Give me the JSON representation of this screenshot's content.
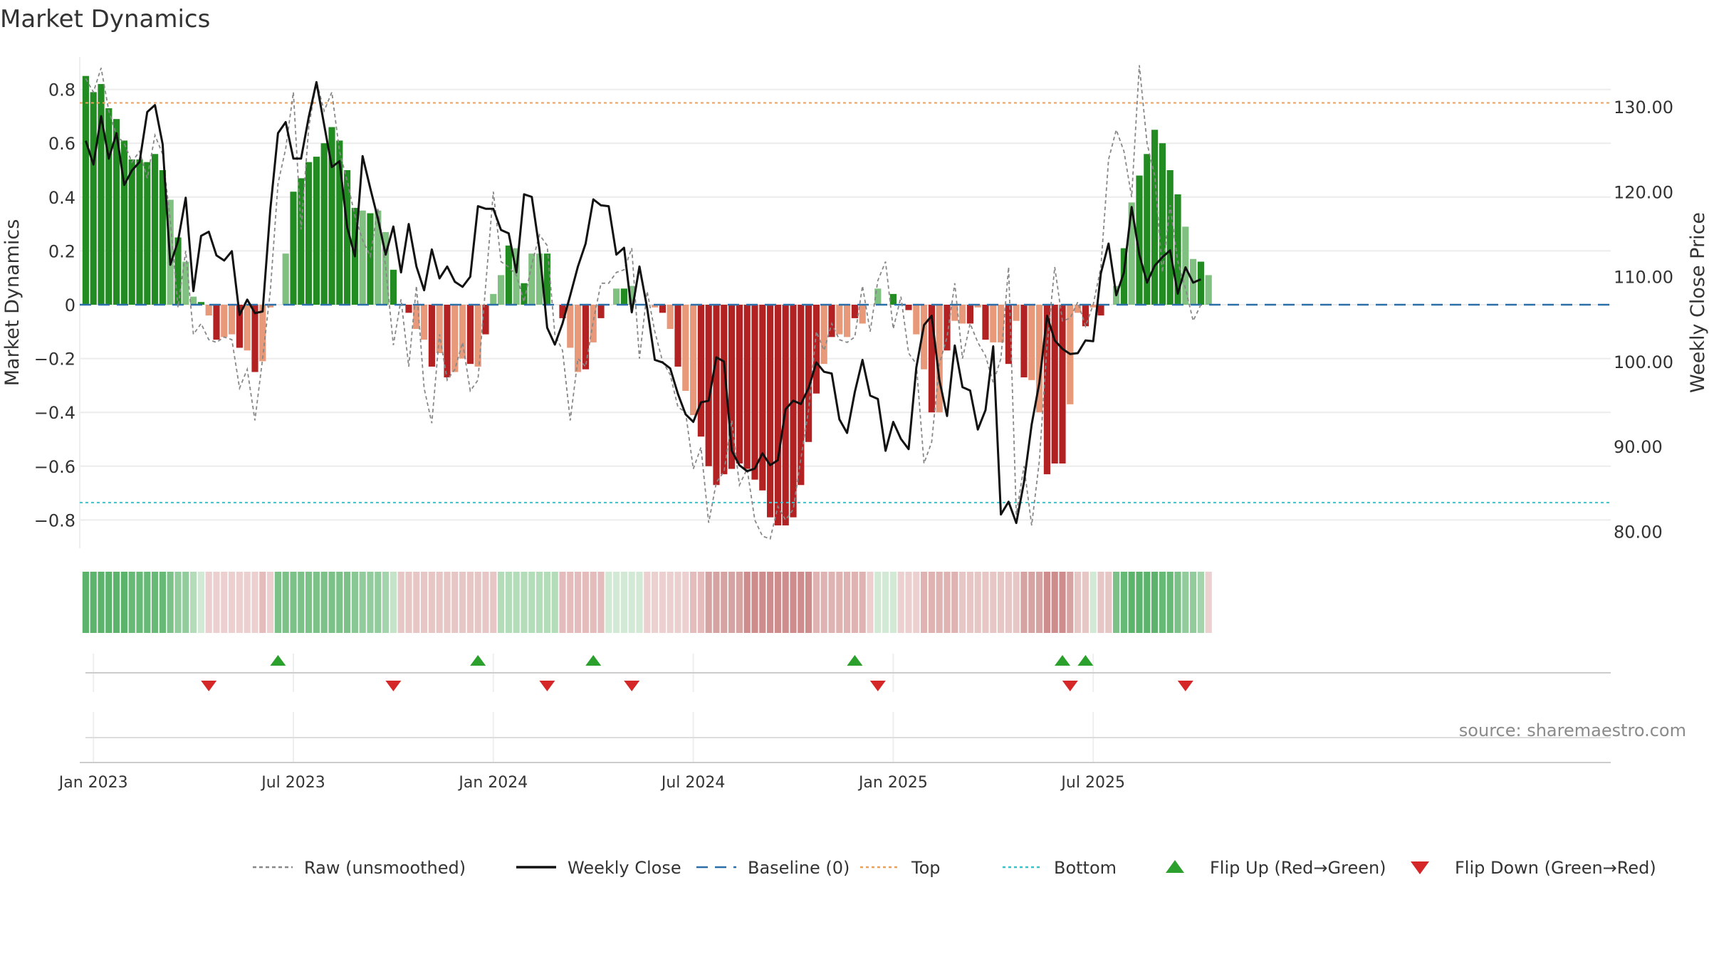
{
  "chart_data": {
    "type": "bar",
    "title": "Market Dynamics",
    "ylabel_left": "Market Dynamics",
    "ylabel_right": "Weekly Close Price",
    "source": "source: sharemaestro.com",
    "ylim_left": [
      -0.92,
      0.92
    ],
    "ylim_right": [
      78.0,
      133.5
    ],
    "y_ticks_left": [
      {
        "v": 0.8,
        "label": "0.8"
      },
      {
        "v": 0.6,
        "label": "0.6"
      },
      {
        "v": 0.4,
        "label": "0.4"
      },
      {
        "v": 0.2,
        "label": "0.2"
      },
      {
        "v": 0.0,
        "label": "0"
      },
      {
        "v": -0.2,
        "label": "−0.2"
      },
      {
        "v": -0.4,
        "label": "−0.4"
      },
      {
        "v": -0.6,
        "label": "−0.6"
      },
      {
        "v": -0.8,
        "label": "−0.8"
      }
    ],
    "y_ticks_right": [
      {
        "v": 130,
        "label": "130.00"
      },
      {
        "v": 120,
        "label": "120.00"
      },
      {
        "v": 110,
        "label": "110.00"
      },
      {
        "v": 100,
        "label": "100.00"
      },
      {
        "v": 90,
        "label": "90.00"
      },
      {
        "v": 80,
        "label": "80.00"
      }
    ],
    "x_ticks": [
      {
        "week": 1.5,
        "label": "Jan 2023"
      },
      {
        "week": 27.5,
        "label": "Jul 2023"
      },
      {
        "week": 53.5,
        "label": "Jan 2024"
      },
      {
        "week": 79.5,
        "label": "Jul 2024"
      },
      {
        "week": 105.5,
        "label": "Jan 2025"
      },
      {
        "week": 131.5,
        "label": "Jul 2025"
      }
    ],
    "levels": {
      "top": 0.75,
      "bottom": -0.735,
      "baseline": 0
    },
    "dynamics": [
      0.85,
      0.79,
      0.82,
      0.73,
      0.69,
      0.61,
      0.54,
      0.54,
      0.53,
      0.56,
      0.5,
      0.39,
      0.25,
      0.16,
      0.03,
      0.01,
      -0.04,
      -0.13,
      -0.12,
      -0.11,
      -0.16,
      -0.17,
      -0.25,
      -0.21,
      -0.01,
      0.0,
      0.19,
      0.42,
      0.47,
      0.53,
      0.55,
      0.6,
      0.66,
      0.61,
      0.5,
      0.36,
      0.35,
      0.34,
      0.35,
      0.27,
      0.13,
      0.0,
      -0.03,
      -0.09,
      -0.13,
      -0.23,
      -0.18,
      -0.27,
      -0.25,
      -0.2,
      -0.22,
      -0.23,
      -0.11,
      0.04,
      0.11,
      0.22,
      0.21,
      0.08,
      0.19,
      0.19,
      0.19,
      0.0,
      -0.05,
      -0.16,
      -0.25,
      -0.24,
      -0.14,
      -0.05,
      0.0,
      0.06,
      0.06,
      0.07,
      0.0,
      0.0,
      -0.01,
      -0.03,
      -0.09,
      -0.23,
      -0.32,
      -0.41,
      -0.49,
      -0.6,
      -0.67,
      -0.63,
      -0.61,
      -0.59,
      -0.61,
      -0.65,
      -0.69,
      -0.79,
      -0.82,
      -0.82,
      -0.79,
      -0.67,
      -0.51,
      -0.33,
      -0.22,
      -0.12,
      -0.11,
      -0.12,
      -0.05,
      -0.07,
      0.0,
      0.06,
      0.0,
      0.04,
      0.0,
      -0.02,
      -0.11,
      -0.24,
      -0.4,
      -0.4,
      -0.17,
      -0.06,
      -0.07,
      -0.07,
      -0.01,
      -0.13,
      -0.14,
      -0.14,
      -0.22,
      -0.06,
      -0.27,
      -0.28,
      -0.4,
      -0.63,
      -0.59,
      -0.59,
      -0.37,
      -0.03,
      -0.08,
      -0.01,
      -0.04,
      0.0,
      0.07,
      0.21,
      0.38,
      0.48,
      0.56,
      0.65,
      0.6,
      0.5,
      0.41,
      0.29,
      0.17,
      0.16,
      0.11
    ],
    "raw": [
      0.84,
      0.79,
      0.88,
      0.72,
      0.63,
      0.6,
      0.53,
      0.57,
      0.47,
      0.63,
      0.56,
      0.31,
      -0.01,
      0.2,
      -0.11,
      -0.07,
      -0.13,
      -0.14,
      -0.12,
      -0.13,
      -0.31,
      -0.24,
      -0.43,
      -0.2,
      0.05,
      0.45,
      0.58,
      0.79,
      0.28,
      0.66,
      0.83,
      0.72,
      0.79,
      0.57,
      0.46,
      0.33,
      0.24,
      0.18,
      0.36,
      0.14,
      -0.15,
      0.02,
      -0.23,
      0.07,
      -0.31,
      -0.44,
      -0.11,
      -0.28,
      -0.24,
      -0.14,
      -0.32,
      -0.28,
      0.07,
      0.42,
      0.16,
      0.14,
      0.11,
      0.01,
      0.15,
      0.26,
      0.22,
      -0.11,
      -0.17,
      -0.43,
      -0.2,
      -0.23,
      -0.06,
      0.08,
      0.08,
      0.12,
      0.13,
      0.21,
      -0.2,
      0.05,
      -0.1,
      -0.21,
      -0.26,
      -0.38,
      -0.4,
      -0.61,
      -0.53,
      -0.81,
      -0.66,
      -0.62,
      -0.43,
      -0.67,
      -0.61,
      -0.8,
      -0.86,
      -0.87,
      -0.75,
      -0.8,
      -0.76,
      -0.57,
      -0.39,
      -0.1,
      -0.17,
      -0.07,
      -0.13,
      -0.14,
      -0.12,
      0.07,
      -0.1,
      0.09,
      0.16,
      -0.09,
      0.03,
      -0.18,
      -0.22,
      -0.59,
      -0.51,
      -0.22,
      -0.12,
      0.08,
      -0.2,
      -0.07,
      -0.14,
      -0.19,
      -0.29,
      -0.2,
      0.14,
      -0.78,
      -0.6,
      -0.82,
      -0.58,
      -0.15,
      0.14,
      -0.06,
      -0.05,
      0.01,
      -0.08,
      0.0,
      0.14,
      0.54,
      0.65,
      0.57,
      0.4,
      0.89,
      0.6,
      0.48,
      0.12,
      0.37,
      0.16,
      0.06,
      -0.06,
      0.0
    ],
    "weekly_close": [
      126.0,
      123.2,
      128.9,
      123.9,
      126.9,
      120.8,
      122.5,
      123.5,
      129.4,
      130.2,
      125.6,
      111.4,
      114.2,
      119.3,
      108.3,
      114.8,
      115.3,
      112.5,
      111.9,
      113.0,
      105.5,
      107.3,
      105.7,
      105.9,
      117.9,
      126.9,
      128.2,
      123.9,
      123.9,
      128.8,
      132.9,
      127.9,
      122.9,
      123.6,
      115.8,
      112.4,
      124.2,
      120.4,
      116.8,
      112.6,
      115.9,
      110.5,
      116.2,
      111.2,
      108.4,
      113.2,
      109.8,
      111.2,
      109.4,
      108.8,
      110.0,
      118.3,
      118.0,
      118.0,
      115.5,
      115.1,
      110.5,
      119.7,
      119.4,
      113.2,
      104.0,
      102.0,
      104.5,
      107.8,
      111.2,
      113.9,
      119.1,
      118.4,
      118.3,
      112.6,
      113.4,
      105.8,
      111.2,
      106.3,
      100.2,
      99.9,
      99.2,
      96.2,
      93.8,
      92.9,
      95.2,
      95.4,
      100.5,
      100.0,
      89.5,
      87.8,
      87.1,
      87.4,
      89.2,
      87.8,
      88.4,
      94.4,
      95.4,
      95.0,
      96.9,
      99.9,
      98.8,
      98.6,
      93.2,
      91.6,
      96.4,
      100.2,
      96.0,
      95.6,
      89.5,
      92.9,
      90.9,
      89.7,
      99.3,
      104.3,
      105.4,
      97.8,
      93.6,
      101.9,
      97.0,
      96.6,
      92.0,
      94.3,
      101.8,
      82.0,
      83.5,
      81.0,
      85.8,
      92.6,
      97.5,
      105.4,
      102.5,
      101.5,
      100.9,
      101.0,
      102.5,
      102.4,
      110.4,
      113.9,
      107.8,
      110.5,
      118.2,
      112.6,
      109.3,
      111.3,
      112.3,
      113.1,
      108.0,
      111.1,
      109.3,
      109.7
    ],
    "flip_up_weeks": [
      25.5,
      51.5,
      66.5,
      100.5,
      127.5,
      130.5
    ],
    "flip_down_weeks": [
      16.5,
      40.5,
      60.5,
      71.5,
      103.5,
      128.5,
      143.5
    ],
    "strip_colors": [
      "#5cb46c",
      "#5cb46c",
      "#5cb46c",
      "#5cb46c",
      "#5cb46c",
      "#5cb46c",
      "#67b976",
      "#67b976",
      "#67b976",
      "#67b976",
      "#67b976",
      "#7cc288",
      "#93cc9c",
      "#93cc9c",
      "#b3dcb9",
      "#d2e9d5",
      "#ecd0d0",
      "#ecd0d0",
      "#ecd0d0",
      "#ecd0d0",
      "#ecd0d0",
      "#ecd0d0",
      "#ecd0d0",
      "#e4bcbc",
      "#ecd0d0",
      "#7cc288",
      "#7cc288",
      "#7cc288",
      "#7cc288",
      "#7cc288",
      "#7cc288",
      "#7cc288",
      "#7cc288",
      "#7cc288",
      "#7cc288",
      "#89c794",
      "#93cc9c",
      "#93cc9c",
      "#93cc9c",
      "#a4d4ab",
      "#c5e3c9",
      "#e7c6c6",
      "#e7c6c6",
      "#e7c6c6",
      "#e7c6c6",
      "#e7c6c6",
      "#e7c6c6",
      "#e7c6c6",
      "#e7c6c6",
      "#e7c6c6",
      "#e7c6c6",
      "#e7c6c6",
      "#e7c6c6",
      "#e7c6c6",
      "#b3dcb9",
      "#b3dcb9",
      "#b3dcb9",
      "#b3dcb9",
      "#b3dcb9",
      "#b3dcb9",
      "#b3dcb9",
      "#b3dcb9",
      "#e4bcbc",
      "#e4bcbc",
      "#e4bcbc",
      "#e4bcbc",
      "#e4bcbc",
      "#e4bcbc",
      "#d2e9d5",
      "#d2e9d5",
      "#d2e9d5",
      "#d2e9d5",
      "#d2e9d5",
      "#ecd0d0",
      "#ecd0d0",
      "#ecd0d0",
      "#ecd0d0",
      "#ecd0d0",
      "#ecd0d0",
      "#e4bcbc",
      "#e4bcbc",
      "#d6a3a3",
      "#d6a3a3",
      "#d6a3a3",
      "#d6a3a3",
      "#d6a3a3",
      "#cf8c8c",
      "#cf8c8c",
      "#cf8c8c",
      "#cf8c8c",
      "#cf8c8c",
      "#cf8c8c",
      "#cf8c8c",
      "#cf8c8c",
      "#cf8c8c",
      "#e0b3b3",
      "#e0b3b3",
      "#e0b3b3",
      "#e0b3b3",
      "#e0b3b3",
      "#e0b3b3",
      "#e0b3b3",
      "#ecd0d0",
      "#d2e9d5",
      "#d2e9d5",
      "#d2e9d5",
      "#ecd0d0",
      "#ecd0d0",
      "#ecd0d0",
      "#e0b3b3",
      "#e0b3b3",
      "#e0b3b3",
      "#e0b3b3",
      "#e0b3b3",
      "#e7c6c6",
      "#e7c6c6",
      "#e7c6c6",
      "#e7c6c6",
      "#e7c6c6",
      "#e7c6c6",
      "#e7c6c6",
      "#e7c6c6",
      "#d6a3a3",
      "#d6a3a3",
      "#d6a3a3",
      "#cf8c8c",
      "#cf8c8c",
      "#cf8c8c",
      "#d6a3a3",
      "#e7c6c6",
      "#e7c6c6",
      "#d2e9d5",
      "#e7c6c6",
      "#e7c6c6",
      "#7cc288",
      "#67b976",
      "#5cb46c",
      "#5cb46c",
      "#5cb46c",
      "#5cb46c",
      "#67b976",
      "#67b976",
      "#7cc288",
      "#93cc9c",
      "#93cc9c",
      "#a4d4ab",
      "#ecd0d0"
    ]
  },
  "legend": [
    {
      "label": "Raw (unsmoothed)",
      "kind": "dashed",
      "color": "#888888"
    },
    {
      "label": "Weekly Close",
      "kind": "line",
      "color": "#111111"
    },
    {
      "label": "Baseline (0)",
      "kind": "dashed-long",
      "color": "#2c6fa8"
    },
    {
      "label": "Top",
      "kind": "dotted",
      "color": "#e8a05a"
    },
    {
      "label": "Bottom",
      "kind": "dotted",
      "color": "#3cc3c8"
    },
    {
      "label": "Flip Up (Red→Green)",
      "kind": "tri-up",
      "color": "#2ca02c"
    },
    {
      "label": "Flip Down (Green→Red)",
      "kind": "tri-down",
      "color": "#d62728"
    }
  ],
  "colors": {
    "pos_strong": "#228b22",
    "pos_weak": "#80c080",
    "neg_strong": "#b22222",
    "neg_weak": "#e8997a",
    "top_line": "#e8a05a",
    "bottom_line": "#3cc3c8",
    "baseline": "#2c6fa8",
    "close_line": "#111111",
    "raw_line": "#888888",
    "flip_up": "#2ca02c",
    "flip_down": "#d62728"
  }
}
